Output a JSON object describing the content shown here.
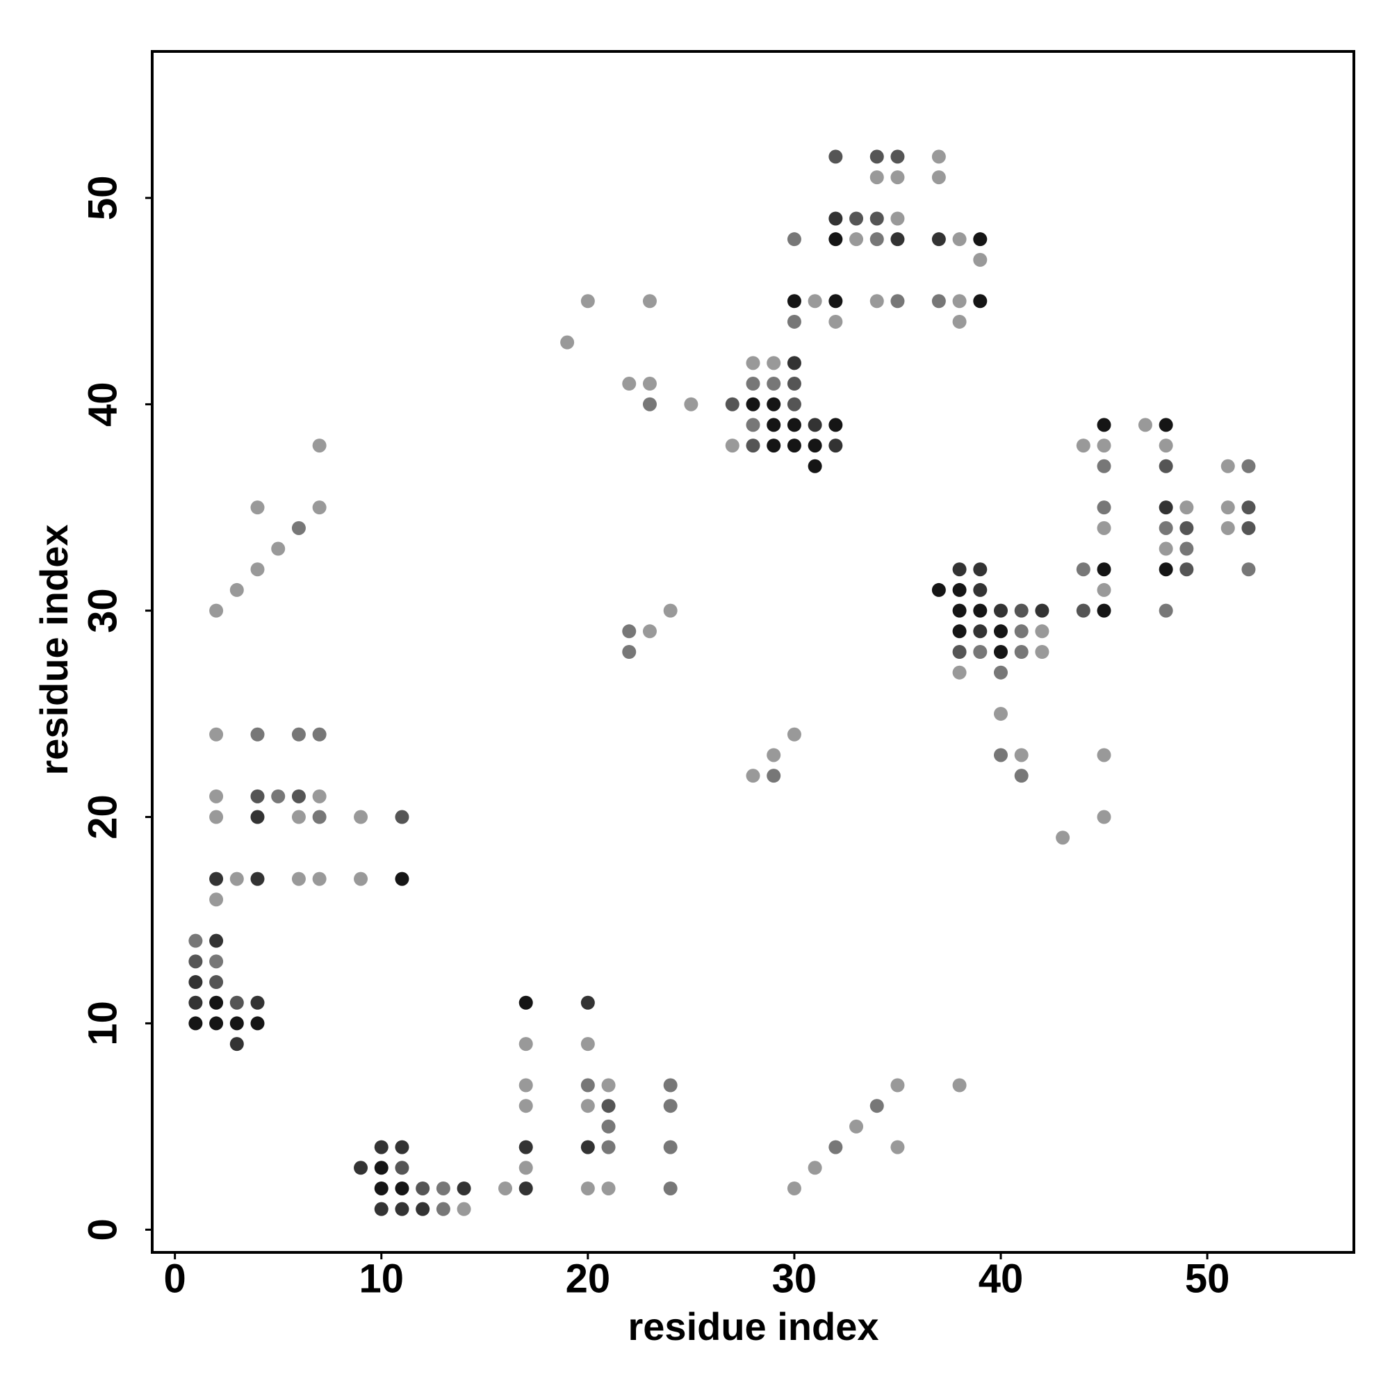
{
  "chart_data": {
    "type": "scatter",
    "xlabel": "residue index",
    "ylabel": "residue index",
    "xlim": [
      -1.1,
      57.1
    ],
    "ylim": [
      -1.1,
      57.1
    ],
    "xticks": [
      0,
      10,
      20,
      30,
      40,
      50
    ],
    "yticks": [
      0,
      10,
      20,
      30,
      40,
      50
    ],
    "grid": false,
    "x": [
      1,
      2,
      1,
      2,
      1,
      2,
      1,
      2,
      3,
      4,
      1,
      2,
      3,
      4,
      3,
      2,
      2,
      3,
      4,
      6,
      7,
      9,
      11,
      2,
      4,
      6,
      7,
      9,
      11,
      2,
      4,
      5,
      6,
      7,
      2,
      4,
      6,
      7,
      2,
      3,
      4,
      5,
      6,
      4,
      7,
      7,
      9,
      10,
      11,
      10,
      11,
      10,
      11,
      12,
      13,
      14,
      10,
      11,
      12,
      13,
      14,
      16,
      17,
      17,
      17,
      17,
      17,
      17,
      17,
      20,
      20,
      20,
      21,
      20,
      21,
      21,
      20,
      21,
      20,
      21,
      24,
      24,
      24,
      24,
      30,
      31,
      32,
      33,
      34,
      35,
      35,
      38,
      22,
      23,
      22,
      24,
      28,
      29,
      29,
      30,
      19,
      20,
      23,
      22,
      23,
      23,
      25,
      27,
      27,
      28,
      29,
      30,
      28,
      29,
      30,
      28,
      29,
      30,
      28,
      29,
      30,
      31,
      32,
      28,
      29,
      30,
      31,
      32,
      31,
      30,
      30,
      31,
      32,
      30,
      32,
      32,
      34,
      35,
      37,
      34,
      35,
      37,
      32,
      33,
      34,
      35,
      32,
      33,
      34,
      35,
      37,
      38,
      39,
      39,
      34,
      35,
      37,
      38,
      39,
      38,
      37,
      38,
      39,
      38,
      39,
      38,
      39,
      40,
      41,
      42,
      38,
      39,
      40,
      41,
      42,
      38,
      39,
      40,
      41,
      42,
      38,
      40,
      40,
      40,
      41,
      41,
      43,
      45,
      45,
      44,
      45,
      45,
      45,
      45,
      45,
      44,
      45,
      45,
      44,
      45,
      47,
      48,
      48,
      48,
      48,
      49,
      48,
      49,
      48,
      49,
      48,
      49,
      48,
      51,
      52,
      51,
      52,
      51,
      52,
      52
    ],
    "y": [
      14,
      14,
      13,
      13,
      12,
      12,
      11,
      11,
      11,
      11,
      10,
      10,
      10,
      10,
      9,
      16,
      17,
      17,
      17,
      17,
      17,
      17,
      17,
      20,
      20,
      20,
      20,
      20,
      20,
      21,
      21,
      21,
      21,
      21,
      24,
      24,
      24,
      24,
      30,
      31,
      32,
      33,
      34,
      35,
      35,
      38,
      3,
      4,
      4,
      3,
      3,
      2,
      2,
      2,
      2,
      2,
      1,
      1,
      1,
      1,
      1,
      2,
      2,
      3,
      4,
      6,
      7,
      9,
      11,
      11,
      9,
      7,
      7,
      6,
      6,
      5,
      4,
      4,
      2,
      2,
      7,
      6,
      4,
      2,
      2,
      3,
      4,
      5,
      6,
      7,
      4,
      7,
      29,
      29,
      28,
      30,
      22,
      22,
      23,
      24,
      43,
      45,
      45,
      41,
      41,
      40,
      40,
      40,
      38,
      42,
      42,
      42,
      41,
      41,
      41,
      40,
      40,
      40,
      39,
      39,
      39,
      39,
      39,
      38,
      38,
      38,
      38,
      38,
      37,
      48,
      45,
      45,
      45,
      44,
      44,
      52,
      52,
      52,
      52,
      51,
      51,
      51,
      49,
      49,
      49,
      49,
      48,
      48,
      48,
      48,
      48,
      48,
      48,
      47,
      45,
      45,
      45,
      45,
      45,
      44,
      31,
      32,
      32,
      31,
      31,
      30,
      30,
      30,
      30,
      30,
      29,
      29,
      29,
      29,
      29,
      28,
      28,
      28,
      28,
      28,
      27,
      27,
      25,
      23,
      23,
      22,
      19,
      23,
      20,
      38,
      39,
      38,
      37,
      35,
      34,
      32,
      32,
      31,
      30,
      30,
      39,
      39,
      38,
      37,
      35,
      35,
      34,
      34,
      33,
      33,
      32,
      32,
      30,
      37,
      37,
      35,
      35,
      34,
      34,
      32
    ],
    "colors": [
      "#777777",
      "#333333",
      "#555555",
      "#777777",
      "#333333",
      "#555555",
      "#333333",
      "#151515",
      "#555555",
      "#333333",
      "#151515",
      "#151515",
      "#151515",
      "#151515",
      "#333333",
      "#999999",
      "#333333",
      "#999999",
      "#333333",
      "#999999",
      "#999999",
      "#999999",
      "#151515",
      "#999999",
      "#333333",
      "#999999",
      "#777777",
      "#999999",
      "#555555",
      "#999999",
      "#555555",
      "#777777",
      "#555555",
      "#999999",
      "#999999",
      "#777777",
      "#777777",
      "#777777",
      "#999999",
      "#999999",
      "#999999",
      "#999999",
      "#777777",
      "#999999",
      "#999999",
      "#999999",
      "#333333",
      "#333333",
      "#333333",
      "#151515",
      "#555555",
      "#151515",
      "#151515",
      "#555555",
      "#777777",
      "#333333",
      "#333333",
      "#333333",
      "#333333",
      "#777777",
      "#999999",
      "#999999",
      "#333333",
      "#999999",
      "#333333",
      "#999999",
      "#999999",
      "#999999",
      "#151515",
      "#333333",
      "#999999",
      "#777777",
      "#999999",
      "#999999",
      "#555555",
      "#777777",
      "#333333",
      "#777777",
      "#999999",
      "#999999",
      "#777777",
      "#777777",
      "#777777",
      "#777777",
      "#999999",
      "#999999",
      "#777777",
      "#999999",
      "#777777",
      "#999999",
      "#999999",
      "#999999",
      "#777777",
      "#999999",
      "#777777",
      "#999999",
      "#999999",
      "#777777",
      "#999999",
      "#999999",
      "#999999",
      "#999999",
      "#999999",
      "#999999",
      "#999999",
      "#777777",
      "#999999",
      "#555555",
      "#999999",
      "#999999",
      "#999999",
      "#333333",
      "#777777",
      "#777777",
      "#555555",
      "#151515",
      "#151515",
      "#555555",
      "#777777",
      "#151515",
      "#151515",
      "#333333",
      "#151515",
      "#555555",
      "#151515",
      "#151515",
      "#151515",
      "#333333",
      "#151515",
      "#777777",
      "#151515",
      "#999999",
      "#151515",
      "#777777",
      "#999999",
      "#555555",
      "#555555",
      "#555555",
      "#999999",
      "#999999",
      "#999999",
      "#999999",
      "#333333",
      "#555555",
      "#555555",
      "#999999",
      "#151515",
      "#999999",
      "#777777",
      "#333333",
      "#333333",
      "#999999",
      "#151515",
      "#999999",
      "#999999",
      "#777777",
      "#777777",
      "#999999",
      "#151515",
      "#999999",
      "#151515",
      "#333333",
      "#333333",
      "#151515",
      "#333333",
      "#151515",
      "#151515",
      "#333333",
      "#555555",
      "#333333",
      "#151515",
      "#333333",
      "#151515",
      "#777777",
      "#999999",
      "#555555",
      "#777777",
      "#151515",
      "#777777",
      "#999999",
      "#999999",
      "#777777",
      "#999999",
      "#777777",
      "#999999",
      "#777777",
      "#999999",
      "#999999",
      "#999999",
      "#999999",
      "#151515",
      "#999999",
      "#777777",
      "#777777",
      "#999999",
      "#777777",
      "#151515",
      "#999999",
      "#555555",
      "#151515",
      "#999999",
      "#151515",
      "#999999",
      "#555555",
      "#333333",
      "#999999",
      "#777777",
      "#555555",
      "#999999",
      "#777777",
      "#151515",
      "#555555",
      "#777777",
      "#999999",
      "#777777",
      "#999999",
      "#555555",
      "#999999",
      "#555555",
      "#777777"
    ]
  }
}
